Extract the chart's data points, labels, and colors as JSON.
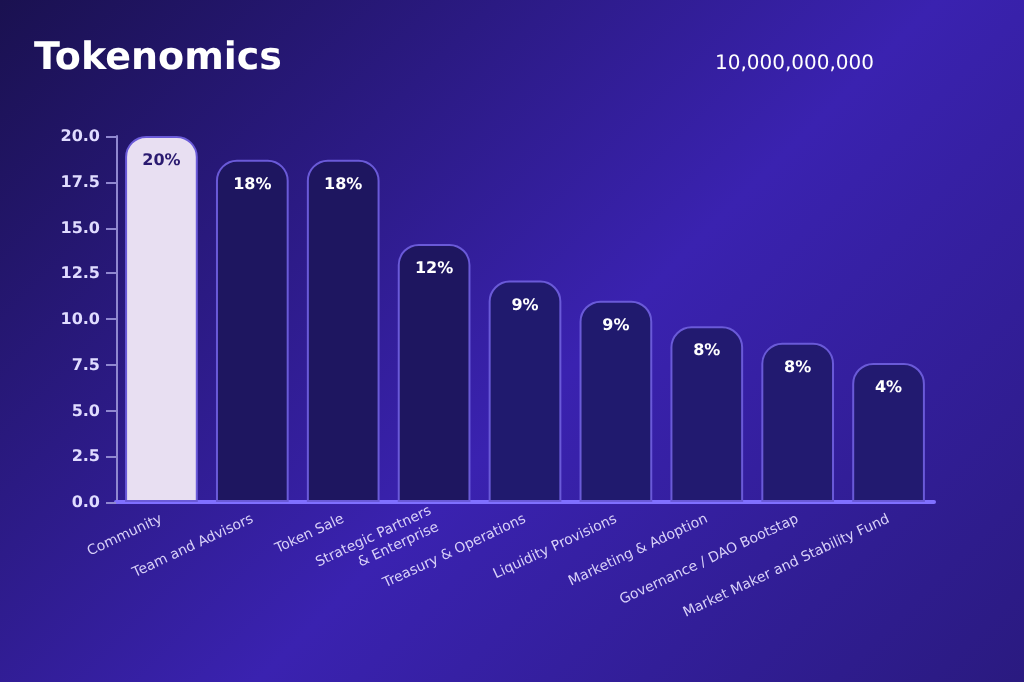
{
  "chart_data": {
    "type": "bar",
    "title": "Tokenomics",
    "subtitle": "10,000,000,000",
    "categories": [
      "Community",
      "Team and Advisors",
      "Token Sale",
      "Strategic Partners\n& Enterprise",
      "Treasury & Operations",
      "Liquidity Provisions",
      "Marketing & Adoption",
      "Governance / DAO Bootstap",
      "Market Maker and Stability Fund"
    ],
    "values": [
      20,
      18.7,
      18.7,
      14.1,
      12.1,
      11,
      9.6,
      8.7,
      7.6
    ],
    "annotations": [
      {
        "text": "20%",
        "x": "Community",
        "y": 20
      },
      {
        "text": "18%",
        "x": "Team and Advisors",
        "y": 18.7
      },
      {
        "text": "18%",
        "x": "Token Sale",
        "y": 18.7
      },
      {
        "text": "12%",
        "x": "Strategic Partners\n& Enterprise",
        "y": 14.1
      },
      {
        "text": "9%",
        "x": "Treasury & Operations",
        "y": 12.1
      },
      {
        "text": "9%",
        "x": "Liquidity Provisions",
        "y": 11
      },
      {
        "text": "8%",
        "x": "Marketing & Adoption",
        "y": 9.6
      },
      {
        "text": "8%",
        "x": "Governance / DAO Bootstap",
        "y": 8.7
      },
      {
        "text": "4%",
        "x": "Market Maker and Stability Fund",
        "y": 7.6
      }
    ],
    "colors": [
      "#e8dff2",
      "#1e1660",
      "#1e1660",
      "#1e1660",
      "#201a6e",
      "#201a6e",
      "#221a70",
      "#221a70",
      "#221a70"
    ],
    "ylim": [
      0,
      20
    ],
    "yticks": [
      {
        "value": 0,
        "label": "0.0"
      },
      2.5,
      {
        "value": 5,
        "label": "5.0"
      },
      7.5,
      {
        "value": 10,
        "label": "10.0"
      },
      12.5,
      {
        "value": 15,
        "label": "15.0"
      },
      17.5,
      {
        "value": 20,
        "label": "20.0"
      }
    ],
    "grid": false
  }
}
